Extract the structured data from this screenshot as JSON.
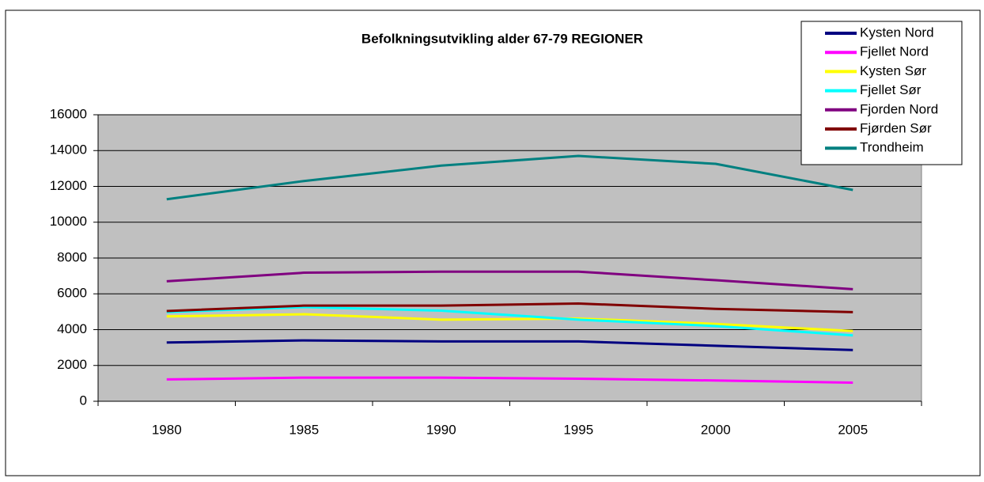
{
  "chart_data": {
    "type": "line",
    "title": "Befolkningsutvikling alder 67-79 REGIONER",
    "categories": [
      "1980",
      "1985",
      "1990",
      "1995",
      "2000",
      "2005"
    ],
    "series": [
      {
        "name": "Kysten Nord",
        "color": "#000080",
        "values": [
          3280,
          3400,
          3340,
          3340,
          3100,
          2860
        ]
      },
      {
        "name": "Fjellet Nord",
        "color": "#ff00ff",
        "values": [
          1220,
          1320,
          1320,
          1260,
          1160,
          1040
        ]
      },
      {
        "name": "Kysten Sør",
        "color": "#ffff00",
        "values": [
          4740,
          4860,
          4560,
          4620,
          4320,
          3920
        ]
      },
      {
        "name": "Fjellet Sør",
        "color": "#00ffff",
        "values": [
          4980,
          5260,
          5060,
          4560,
          4200,
          3680
        ]
      },
      {
        "name": "Fjorden Nord",
        "color": "#800080",
        "values": [
          6700,
          7180,
          7240,
          7240,
          6760,
          6260
        ]
      },
      {
        "name": "Fjørden Sør",
        "color": "#800000",
        "values": [
          5040,
          5340,
          5340,
          5460,
          5160,
          4980
        ]
      },
      {
        "name": "Trondheim",
        "color": "#008080",
        "values": [
          11280,
          12300,
          13160,
          13700,
          13260,
          11800
        ]
      }
    ],
    "ylim": [
      0,
      16000
    ],
    "yticks": [
      0,
      2000,
      4000,
      6000,
      8000,
      10000,
      12000,
      14000,
      16000
    ],
    "grid": true,
    "legend": "top-right",
    "plot_background": "#c0c0c0"
  }
}
